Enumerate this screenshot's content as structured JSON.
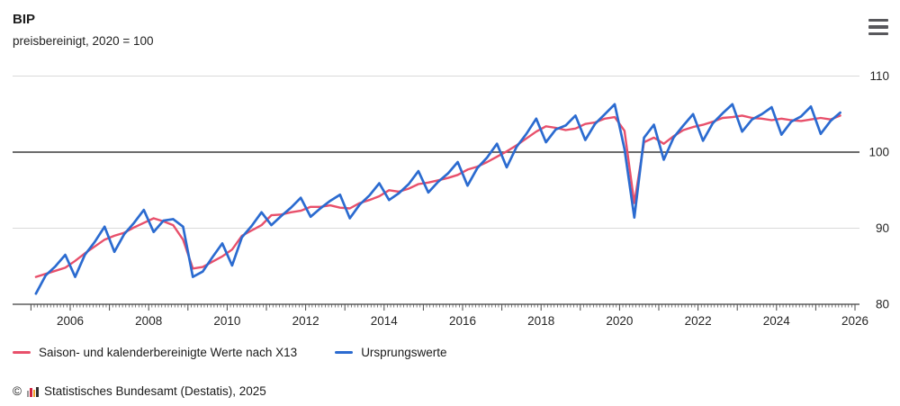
{
  "header": {
    "title": "BIP",
    "subtitle": "preisbereinigt, 2020 = 100"
  },
  "menu": {
    "icon": "hamburger-menu"
  },
  "chart_data": {
    "type": "line",
    "title": "BIP",
    "subtitle": "preisbereinigt, 2020 = 100",
    "x_axis": {
      "frequency": "quarterly",
      "start_year": 2005,
      "start_quarter": 1,
      "end_year": 2025,
      "end_quarter": 3,
      "tick_years": [
        2006,
        2008,
        2010,
        2012,
        2014,
        2016,
        2018,
        2020,
        2022,
        2024,
        2026
      ],
      "range": [
        2005,
        2026
      ]
    },
    "y_axis": {
      "ticks": [
        80,
        90,
        100,
        110
      ],
      "range": [
        80,
        110
      ],
      "baseline": 100
    },
    "grid": "horizontal",
    "legend_position": "bottom-left",
    "colors": {
      "adjusted": "#e8506b",
      "original": "#2b6bd0",
      "baseline_line": "#3c3c3c",
      "gridline": "#dadada"
    },
    "series": [
      {
        "name": "Saison- und kalenderbereinigte Werte nach X13",
        "color": "#e8506b",
        "values": [
          83.6,
          84.0,
          84.4,
          84.8,
          85.7,
          86.7,
          87.6,
          88.5,
          89.0,
          89.4,
          90.1,
          90.7,
          91.3,
          90.9,
          90.4,
          88.5,
          84.7,
          84.9,
          85.6,
          86.3,
          87.2,
          89.0,
          89.7,
          90.4,
          91.7,
          91.8,
          92.1,
          92.3,
          92.8,
          92.8,
          93.0,
          92.7,
          92.6,
          93.3,
          93.7,
          94.2,
          95.0,
          94.8,
          95.2,
          95.8,
          96.0,
          96.3,
          96.6,
          97.0,
          97.7,
          98.1,
          98.7,
          99.4,
          100.1,
          100.9,
          101.8,
          102.7,
          103.4,
          103.2,
          102.9,
          103.1,
          103.7,
          103.9,
          104.4,
          104.6,
          102.8,
          93.3,
          101.3,
          101.9,
          101.1,
          102.1,
          102.9,
          103.3,
          103.6,
          104.0,
          104.5,
          104.6,
          104.8,
          104.5,
          104.4,
          104.2,
          104.4,
          104.2,
          104.1,
          104.3,
          104.5,
          104.3,
          104.8
        ]
      },
      {
        "name": "Ursprungswerte",
        "color": "#2b6bd0",
        "values": [
          81.4,
          83.8,
          85.0,
          86.5,
          83.6,
          86.5,
          88.2,
          90.2,
          86.9,
          89.2,
          90.7,
          92.4,
          89.5,
          91.0,
          91.2,
          90.2,
          83.6,
          84.3,
          86.2,
          88.0,
          85.1,
          88.8,
          90.3,
          92.1,
          90.4,
          91.6,
          92.7,
          94.0,
          91.5,
          92.6,
          93.6,
          94.4,
          91.3,
          93.1,
          94.3,
          95.9,
          93.7,
          94.6,
          95.8,
          97.5,
          94.7,
          96.1,
          97.2,
          98.7,
          95.6,
          97.9,
          99.3,
          101.1,
          98.0,
          100.7,
          102.4,
          104.4,
          101.3,
          103.0,
          103.5,
          104.8,
          101.6,
          103.7,
          105.0,
          106.3,
          100.4,
          91.4,
          101.9,
          103.6,
          99.0,
          101.9,
          103.5,
          105.0,
          101.5,
          103.8,
          105.1,
          106.3,
          102.7,
          104.3,
          105.0,
          105.9,
          102.3,
          104.0,
          104.7,
          106.0,
          102.4,
          104.1,
          105.2
        ]
      }
    ]
  },
  "legend": {
    "items": [
      {
        "label": "Saison- und kalenderbereinigte Werte nach X13",
        "color": "#e8506b"
      },
      {
        "label": "Ursprungswerte",
        "color": "#2b6bd0"
      }
    ]
  },
  "footer": {
    "copyright": "©",
    "source": "Statistisches Bundesamt (Destatis), 2025"
  }
}
